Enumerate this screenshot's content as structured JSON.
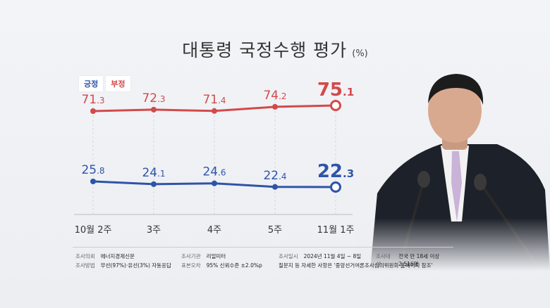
{
  "title": "대통령 국정수행 평가",
  "title_unit": "(%)",
  "legend": {
    "positive": "긍정",
    "negative": "부정"
  },
  "colors": {
    "positive": "#2e54a8",
    "negative": "#d24a4a",
    "grid": "#d4d7de"
  },
  "chart_data": {
    "type": "line",
    "categories": [
      "10월 2주",
      "3주",
      "4주",
      "5주",
      "11월 1주"
    ],
    "series": [
      {
        "name": "부정",
        "values": [
          71.3,
          72.3,
          71.4,
          74.2,
          75.1
        ]
      },
      {
        "name": "긍정",
        "values": [
          25.8,
          24.1,
          24.6,
          22.4,
          22.3
        ]
      }
    ],
    "highlight_last": true
  },
  "footer": {
    "client_label": "조사의뢰",
    "client": "에너지경제신문",
    "agency_label": "조사기관",
    "agency": "리얼미터",
    "date_label": "조사일시",
    "date": "2024년 11월 4일 ~ 8일",
    "target_label": "조사대상",
    "target": "전국 만 18세 이상 2,516명",
    "method_label": "조사방법",
    "method": "무선(97%)·유선(3%) 자동응답",
    "error_label": "표본오차",
    "error": "95% 신뢰수준 ±2.0%p",
    "note": "질문지 등 자세한 사항은 '중앙선거여론조사심의위원회 홈페이지 참조'"
  }
}
